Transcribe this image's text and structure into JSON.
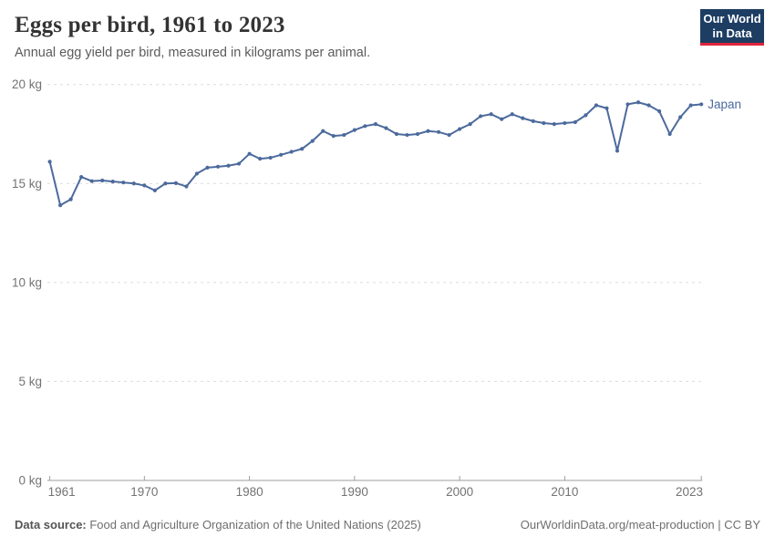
{
  "header": {
    "title": "Eggs per bird, 1961 to 2023",
    "subtitle": "Annual egg yield per bird, measured in kilograms per animal."
  },
  "logo": {
    "line1": "Our World",
    "line2": "in Data",
    "bg_color": "#1d3d63",
    "accent_color": "#e0243a"
  },
  "chart_data": {
    "type": "line",
    "title": "Eggs per bird, 1961 to 2023",
    "subtitle": "Annual egg yield per bird, measured in kilograms per animal.",
    "xlabel": "",
    "ylabel": "",
    "xlim": [
      1961,
      2023
    ],
    "ylim": [
      0,
      20
    ],
    "grid": "horizontal-dashed",
    "legend_position": "end-of-line",
    "x_tick_labels": [
      1961,
      1970,
      1980,
      1990,
      2000,
      2010,
      2023
    ],
    "y_tick_values": [
      0,
      5,
      10,
      15,
      20
    ],
    "y_tick_suffix": " kg",
    "grid_color": "#dcdcdc",
    "axis_color": "#9e9e9e",
    "tick_label_color": "#737373",
    "series": [
      {
        "name": "Japan",
        "color": "#4c6a9c",
        "x": [
          1961,
          1962,
          1963,
          1964,
          1965,
          1966,
          1967,
          1968,
          1969,
          1970,
          1971,
          1972,
          1973,
          1974,
          1975,
          1976,
          1977,
          1978,
          1979,
          1980,
          1981,
          1982,
          1983,
          1984,
          1985,
          1986,
          1987,
          1988,
          1989,
          1990,
          1991,
          1992,
          1993,
          1994,
          1995,
          1996,
          1997,
          1998,
          1999,
          2000,
          2001,
          2002,
          2003,
          2004,
          2005,
          2006,
          2007,
          2008,
          2009,
          2010,
          2011,
          2012,
          2013,
          2014,
          2015,
          2016,
          2017,
          2018,
          2019,
          2020,
          2021,
          2022,
          2023
        ],
        "values": [
          16.1,
          13.9,
          14.2,
          15.33,
          15.12,
          15.15,
          15.1,
          15.05,
          15.0,
          14.9,
          14.65,
          15.0,
          15.02,
          14.85,
          15.5,
          15.8,
          15.85,
          15.9,
          16.0,
          16.5,
          16.25,
          16.3,
          16.45,
          16.6,
          16.75,
          17.15,
          17.65,
          17.4,
          17.45,
          17.7,
          17.9,
          18.0,
          17.8,
          17.5,
          17.45,
          17.5,
          17.65,
          17.6,
          17.45,
          17.75,
          18.0,
          18.4,
          18.5,
          18.25,
          18.5,
          18.3,
          18.15,
          18.05,
          18.0,
          18.05,
          18.1,
          18.45,
          18.95,
          18.8,
          16.65,
          19.0,
          19.1,
          18.95,
          18.65,
          17.5,
          18.35,
          18.95,
          19.0
        ]
      }
    ]
  },
  "footer": {
    "source_label": "Data source:",
    "source_text": " Food and Agriculture Organization of the United Nations (2025)",
    "credit": "OurWorldinData.org/meat-production | CC BY"
  }
}
